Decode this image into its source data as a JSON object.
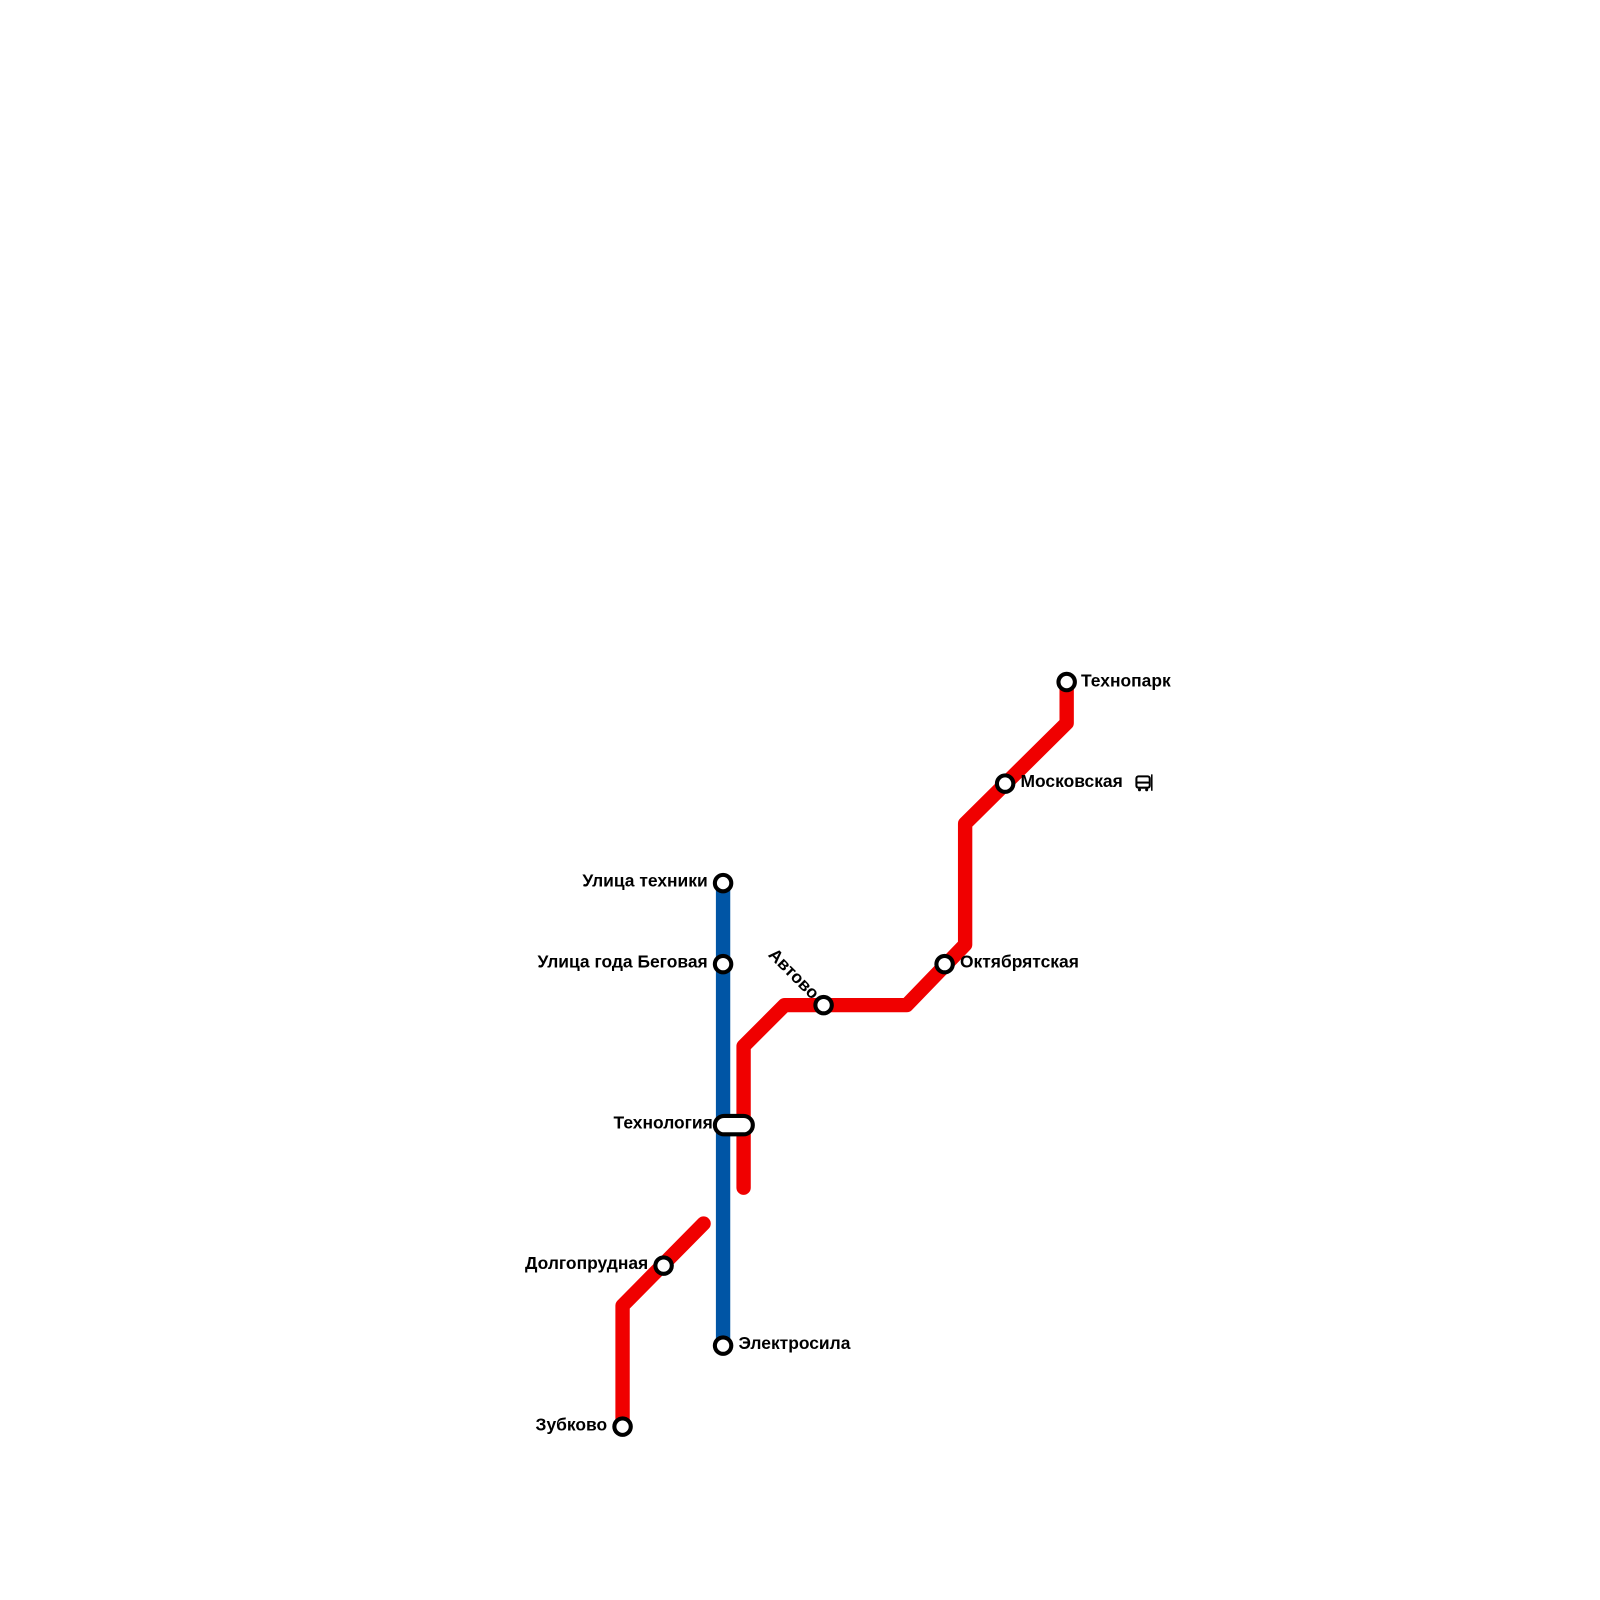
{
  "stations": [
    {
      "name": "Технопарк"
    },
    {
      "name": "Московская"
    },
    {
      "name": "Октябрятская"
    },
    {
      "name": "Автово"
    },
    {
      "name": "Улица техники"
    },
    {
      "name": "Улица года Беговая"
    },
    {
      "name": "Технология"
    },
    {
      "name": "Долгопрудная"
    },
    {
      "name": "Электросила"
    },
    {
      "name": "Зубково"
    }
  ]
}
